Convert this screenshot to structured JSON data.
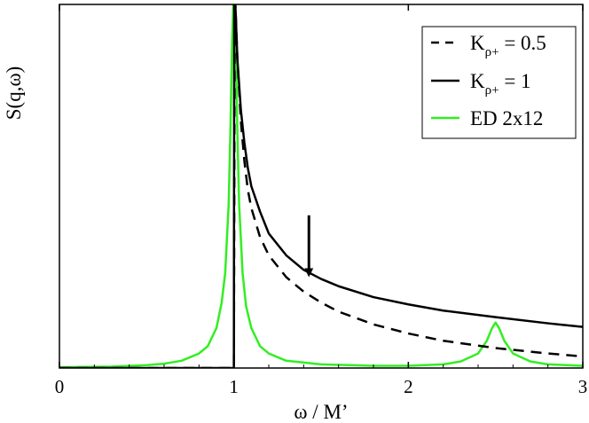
{
  "chart_data": {
    "type": "line",
    "xlabel": "ω / M’",
    "ylabel": "S(q,ω)",
    "xlim": [
      0,
      3
    ],
    "ylim": [
      0,
      1
    ],
    "x_ticks": [
      "0",
      "1",
      "2",
      "3"
    ],
    "y_ticks_shown": false,
    "grid": false,
    "legend_placement": "top-right",
    "legend": [
      {
        "base": "K",
        "sub": "ρ+",
        "rest": " = 0.5"
      },
      {
        "base": "K",
        "sub": "ρ+",
        "rest": " = 1"
      },
      {
        "base": "",
        "sub": "",
        "rest": "ED 2x12"
      }
    ],
    "series": [
      {
        "name": "Kρ+ = 0.5",
        "style": "dashed",
        "color": "#000000",
        "x": [
          0.0,
          0.5,
          0.99,
          1.0,
          1.005,
          1.02,
          1.04,
          1.06,
          1.08,
          1.1,
          1.15,
          1.2,
          1.3,
          1.4,
          1.5,
          1.6,
          1.8,
          2.0,
          2.2,
          2.5,
          2.8,
          3.0
        ],
        "y": [
          0.0,
          0.0,
          0.0,
          0.0,
          1.05,
          0.85,
          0.68,
          0.57,
          0.49,
          0.44,
          0.36,
          0.31,
          0.25,
          0.21,
          0.18,
          0.155,
          0.12,
          0.095,
          0.075,
          0.055,
          0.04,
          0.032
        ]
      },
      {
        "name": "Kρ+ = 1",
        "style": "solid",
        "color": "#000000",
        "x": [
          0.0,
          0.5,
          0.99,
          1.0,
          1.002,
          1.01,
          1.02,
          1.04,
          1.06,
          1.08,
          1.1,
          1.15,
          1.2,
          1.3,
          1.4,
          1.5,
          1.6,
          1.8,
          2.0,
          2.2,
          2.5,
          2.8,
          3.0
        ],
        "y": [
          0.0,
          0.0,
          0.0,
          0.0,
          1.05,
          0.98,
          0.85,
          0.71,
          0.62,
          0.55,
          0.5,
          0.43,
          0.37,
          0.31,
          0.27,
          0.245,
          0.225,
          0.195,
          0.175,
          0.158,
          0.14,
          0.123,
          0.113
        ]
      },
      {
        "name": "ED 2x12",
        "style": "solid",
        "color": "#33ee22",
        "x": [
          0.0,
          0.3,
          0.5,
          0.6,
          0.7,
          0.8,
          0.85,
          0.9,
          0.93,
          0.95,
          0.97,
          0.98,
          0.99,
          1.0,
          1.01,
          1.02,
          1.03,
          1.05,
          1.07,
          1.1,
          1.15,
          1.2,
          1.3,
          1.5,
          1.8,
          2.0,
          2.2,
          2.3,
          2.4,
          2.45,
          2.48,
          2.5,
          2.52,
          2.55,
          2.6,
          2.7,
          2.8,
          3.0
        ],
        "y": [
          0.002,
          0.004,
          0.008,
          0.012,
          0.02,
          0.04,
          0.06,
          0.11,
          0.18,
          0.26,
          0.45,
          0.65,
          0.9,
          1.05,
          0.9,
          0.65,
          0.45,
          0.26,
          0.17,
          0.11,
          0.06,
          0.04,
          0.02,
          0.01,
          0.006,
          0.006,
          0.01,
          0.018,
          0.04,
          0.075,
          0.11,
          0.125,
          0.11,
          0.075,
          0.04,
          0.018,
          0.01,
          0.006
        ]
      }
    ],
    "annotations": [
      {
        "type": "arrow",
        "x": 1.43,
        "y_tail": 0.42,
        "y_head": 0.25
      }
    ]
  }
}
